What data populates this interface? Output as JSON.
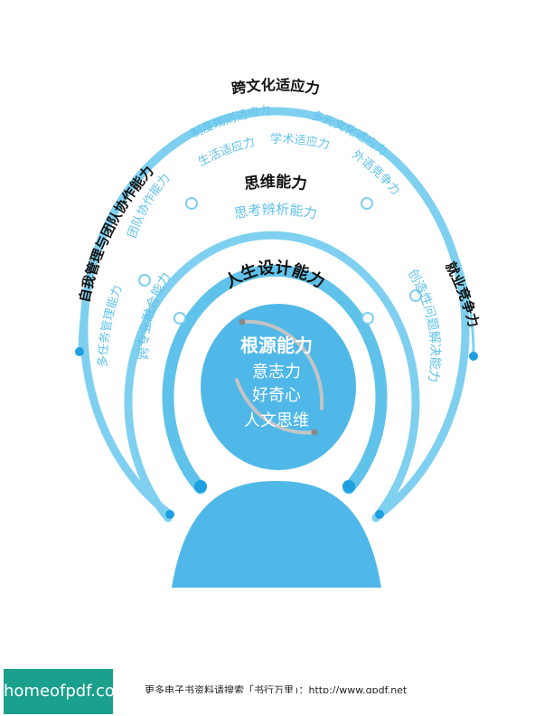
{
  "diagram": {
    "colors": {
      "light_blue": "#7fd0f0",
      "mid_blue": "#5fc2ea",
      "core_blue": "#4fb8e8",
      "dot_blue": "#1e9fe0",
      "dark_text": "#111111"
    },
    "core": {
      "title": "根源能力",
      "items": [
        "意志力",
        "好奇心",
        "人文思维"
      ]
    },
    "rings": {
      "ring1": {
        "title": "人生设计能力",
        "left": "跨专业融合能力",
        "right": "创造性问题解决能力"
      },
      "ring2": {
        "title": "思维能力",
        "sub": "思考辨析能力",
        "left": "团队协作能力"
      },
      "ring3": {
        "title": "跨文化适应力",
        "items": [
          "制度规则适应力",
          "生活适应力",
          "学术适应力",
          "多元文化适应力",
          "外语竞争力"
        ],
        "left_title": "自我管理与团队协作能力",
        "left_item": "多任务管理能力",
        "right_title": "就业竞争力"
      }
    }
  },
  "footer": {
    "logo": "homeofpdf.com",
    "note": "更多电子书资料请搜索「书行万里」：http://www.gpdf.net"
  }
}
